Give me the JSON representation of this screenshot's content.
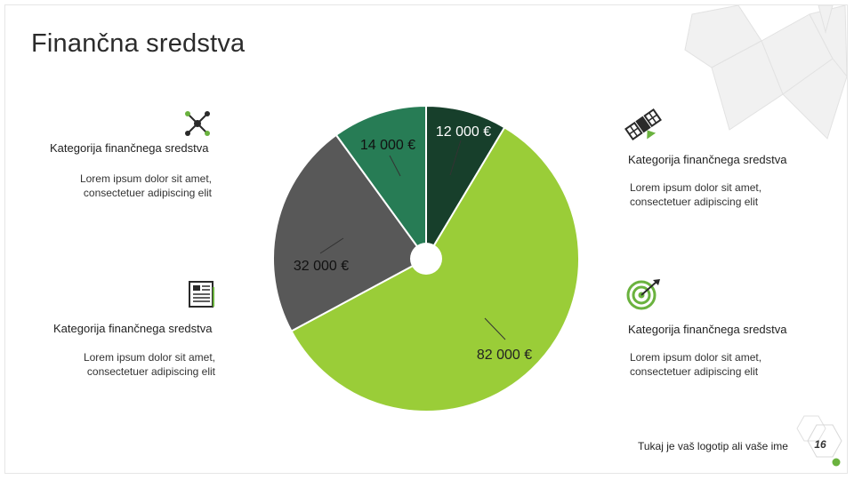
{
  "slide": {
    "title": "Finančna sredstva",
    "page_number": "16",
    "footer_text": "Tukaj je vaš logotip ali vaše ime"
  },
  "cards": [
    {
      "title": "Kategorija finančnega sredstva",
      "desc": "Lorem ipsum dolor sit amet, consectetuer adipiscing elit",
      "icon": "network-icon"
    },
    {
      "title": "Kategorija finančnega sredstva",
      "desc": "Lorem ipsum dolor sit amet, consectetuer adipiscing elit",
      "icon": "satellite-icon"
    },
    {
      "title": "Kategorija finančnega sredstva",
      "desc": "Lorem ipsum dolor sit amet, consectetuer adipiscing elit",
      "icon": "newspaper-icon"
    },
    {
      "title": "Kategorija finančnega sredstva",
      "desc": "Lorem ipsum dolor sit amet, consectetuer adipiscing elit",
      "icon": "target-icon"
    }
  ],
  "colors": {
    "dark_green": "#173f2b",
    "mid_green": "#277c55",
    "gray": "#585858",
    "lime": "#9acd38",
    "accent": "#6ab23e"
  },
  "chart_data": {
    "type": "pie",
    "donut_hole": true,
    "slices": [
      {
        "label": "12 000 €",
        "value": 12000,
        "color": "#173f2b"
      },
      {
        "label": "82 000 €",
        "value": 82000,
        "color": "#9acd38"
      },
      {
        "label": "32 000 €",
        "value": 32000,
        "color": "#585858"
      },
      {
        "label": "14 000 €",
        "value": 14000,
        "color": "#277c55"
      }
    ]
  }
}
